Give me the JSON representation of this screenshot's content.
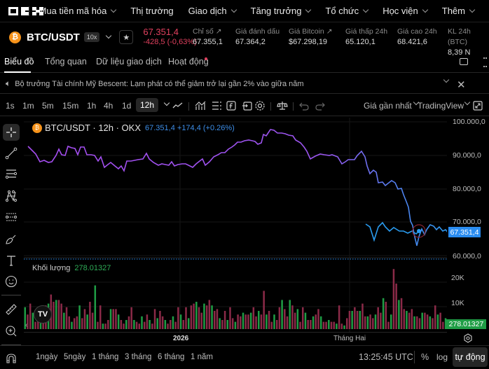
{
  "topnav": {
    "logo": "OKX",
    "items": [
      {
        "label": "Mua tiền mã hóa",
        "dropdown": true
      },
      {
        "label": "Thị trường",
        "dropdown": false
      },
      {
        "label": "Giao dịch",
        "dropdown": true
      },
      {
        "label": "Tăng trưởng",
        "dropdown": true
      },
      {
        "label": "Tổ chức",
        "dropdown": true
      },
      {
        "label": "Học viện",
        "dropdown": true
      },
      {
        "label": "Thêm",
        "dropdown": true
      }
    ]
  },
  "ticker": {
    "coin_icon": "bitcoin-icon",
    "pair": "BTC/USDT",
    "leverage": "10x",
    "last_price": "67.351,4",
    "change": "-428,5 (-0,63%)",
    "stats": [
      {
        "label": "Chỉ số",
        "value": "67.355,1",
        "link": true
      },
      {
        "label": "Giá đánh dấu",
        "value": "67.364,2",
        "link": false
      },
      {
        "label": "Giá Bitcoin",
        "value": "$67.298,19",
        "link": true
      },
      {
        "label": "Giá thấp 24h",
        "value": "65.120,1",
        "link": false
      },
      {
        "label": "Giá cao 24h",
        "value": "68.421,6",
        "link": false
      },
      {
        "label": "KL 24h (BTC)",
        "value": "8,39 N",
        "link": false
      }
    ]
  },
  "tabs": {
    "items": [
      "Biểu đồ",
      "Tổng quan",
      "Dữ liệu giao dịch",
      "Hoạt động"
    ],
    "active": 0
  },
  "news": {
    "text": "Bộ trưởng Tài chính Mỹ Bescent: Lạm phát có thể giảm trở lại gần 2% vào giữa năm"
  },
  "toolbar": {
    "timeframes": [
      "1s",
      "1m",
      "5m",
      "15m",
      "1h",
      "4h",
      "1d",
      "12h"
    ],
    "selected": "12h",
    "price_type": "Giá gần nhất",
    "chart_engine": "TradingView"
  },
  "chart": {
    "legend_title": "BTC/USDT · 12h · OKX",
    "legend_value": "67.351,4  +174,4 (+0.26%)",
    "y_labels": [
      "100.000,0",
      "90.000,0",
      "80.000,0",
      "70.000,0",
      "60.000,0"
    ],
    "current_price_tag": "67.351,4",
    "volume_label": "Khối lượng",
    "volume_value": "278.01327",
    "volume_y_labels": [
      "20K",
      "10K"
    ],
    "volume_tag": "278.01327",
    "x_labels": [
      "2026",
      "Tháng Hai"
    ],
    "line_color_start": "#a54df0",
    "line_color_end": "#2a9cf0",
    "up_color": "#1f9d45",
    "down_color": "#8b2a48"
  },
  "bottom": {
    "ranges": [
      "1ngày",
      "5ngày",
      "1 tháng",
      "3 tháng",
      "6 tháng",
      "1 năm"
    ],
    "time": "13:25:45 UTC",
    "percent": "%",
    "log": "log",
    "auto": "tự động"
  },
  "colors": {
    "negative": "#e0405e",
    "accent_blue": "#2a8cf0",
    "positive": "#1f9d45"
  }
}
